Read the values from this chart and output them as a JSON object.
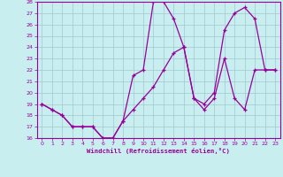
{
  "xlabel": "Windchill (Refroidissement éolien,°C)",
  "bg_color": "#c8eef0",
  "line_color": "#990099",
  "grid_color": "#a0c8d0",
  "xlim": [
    -0.5,
    23.5
  ],
  "ylim": [
    16,
    28
  ],
  "xticks": [
    0,
    1,
    2,
    3,
    4,
    5,
    6,
    7,
    8,
    9,
    10,
    11,
    12,
    13,
    14,
    15,
    16,
    17,
    18,
    19,
    20,
    21,
    22,
    23
  ],
  "yticks": [
    16,
    17,
    18,
    19,
    20,
    21,
    22,
    23,
    24,
    25,
    26,
    27,
    28
  ],
  "line1_x": [
    0,
    1,
    2,
    3,
    4,
    5,
    6,
    7,
    8,
    9,
    10,
    11,
    12,
    13,
    14,
    15,
    16,
    17,
    18,
    19,
    20,
    21,
    22,
    23
  ],
  "line1_y": [
    19,
    18.5,
    18,
    17,
    17,
    17,
    16,
    16,
    17.5,
    21.5,
    22,
    28,
    28,
    26.5,
    24,
    19.5,
    18.5,
    19.5,
    23,
    19.5,
    18.5,
    22,
    22,
    22
  ],
  "line2_x": [
    0,
    1,
    2,
    3,
    4,
    5,
    6,
    7,
    8,
    9,
    10,
    11,
    12,
    13,
    14,
    15,
    16,
    17,
    18,
    19,
    20,
    21,
    22,
    23
  ],
  "line2_y": [
    19,
    18.5,
    18,
    17,
    17,
    17,
    16,
    16,
    17.5,
    18.5,
    19.5,
    20.5,
    22,
    23.5,
    24,
    19.5,
    19,
    20,
    25.5,
    27,
    27.5,
    26.5,
    22,
    22
  ]
}
